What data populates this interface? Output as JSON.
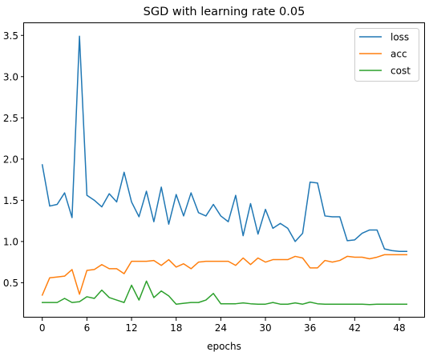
{
  "chart_data": {
    "type": "line",
    "title": "SGD with learning rate 0.05",
    "xlabel": "epochs",
    "ylabel": "",
    "xlim": [
      -2.45,
      51.45
    ],
    "ylim": [
      0.077,
      3.648
    ],
    "xticks": [
      0,
      6,
      12,
      18,
      24,
      30,
      36,
      42,
      48
    ],
    "xtick_labels": [
      "0",
      "6",
      "12",
      "18",
      "24",
      "30",
      "36",
      "42",
      "48"
    ],
    "yticks": [
      0.5,
      1.0,
      1.5,
      2.0,
      2.5,
      3.0,
      3.5
    ],
    "ytick_labels": [
      "0.5",
      "1.0",
      "1.5",
      "2.0",
      "2.5",
      "3.0",
      "3.5"
    ],
    "grid": false,
    "legend_position": "top-right",
    "x": [
      0,
      1,
      2,
      3,
      4,
      5,
      6,
      7,
      8,
      9,
      10,
      11,
      12,
      13,
      14,
      15,
      16,
      17,
      18,
      19,
      20,
      21,
      22,
      23,
      24,
      25,
      26,
      27,
      28,
      29,
      30,
      31,
      32,
      33,
      34,
      35,
      36,
      37,
      38,
      39,
      40,
      41,
      42,
      43,
      44,
      45,
      46,
      47,
      48,
      49
    ],
    "series": [
      {
        "name": "loss",
        "color": "#1f77b4",
        "values": [
          1.93,
          1.43,
          1.45,
          1.59,
          1.29,
          3.49,
          1.56,
          1.5,
          1.42,
          1.58,
          1.48,
          1.84,
          1.48,
          1.3,
          1.61,
          1.24,
          1.66,
          1.21,
          1.57,
          1.31,
          1.59,
          1.35,
          1.31,
          1.45,
          1.31,
          1.24,
          1.56,
          1.07,
          1.46,
          1.09,
          1.39,
          1.16,
          1.22,
          1.16,
          1.0,
          1.1,
          1.72,
          1.71,
          1.31,
          1.3,
          1.3,
          1.01,
          1.02,
          1.1,
          1.14,
          1.14,
          0.91,
          0.89,
          0.88,
          0.88
        ]
      },
      {
        "name": "acc",
        "color": "#ff7f0e",
        "values": [
          0.35,
          0.56,
          0.57,
          0.58,
          0.66,
          0.36,
          0.65,
          0.66,
          0.72,
          0.67,
          0.67,
          0.61,
          0.76,
          0.76,
          0.76,
          0.77,
          0.71,
          0.78,
          0.69,
          0.73,
          0.67,
          0.75,
          0.76,
          0.76,
          0.76,
          0.76,
          0.71,
          0.8,
          0.72,
          0.8,
          0.75,
          0.78,
          0.78,
          0.78,
          0.82,
          0.8,
          0.68,
          0.68,
          0.77,
          0.75,
          0.77,
          0.82,
          0.81,
          0.81,
          0.79,
          0.81,
          0.84,
          0.84,
          0.84,
          0.84
        ]
      },
      {
        "name": "cost",
        "color": "#2ca02c",
        "values": [
          0.26,
          0.26,
          0.26,
          0.31,
          0.26,
          0.27,
          0.33,
          0.31,
          0.41,
          0.32,
          0.29,
          0.26,
          0.47,
          0.29,
          0.52,
          0.32,
          0.4,
          0.34,
          0.24,
          0.25,
          0.26,
          0.26,
          0.29,
          0.37,
          0.245,
          0.245,
          0.245,
          0.255,
          0.245,
          0.24,
          0.24,
          0.26,
          0.24,
          0.24,
          0.255,
          0.24,
          0.265,
          0.245,
          0.24,
          0.24,
          0.24,
          0.24,
          0.24,
          0.24,
          0.235,
          0.24,
          0.24,
          0.24,
          0.24,
          0.24
        ]
      }
    ]
  }
}
